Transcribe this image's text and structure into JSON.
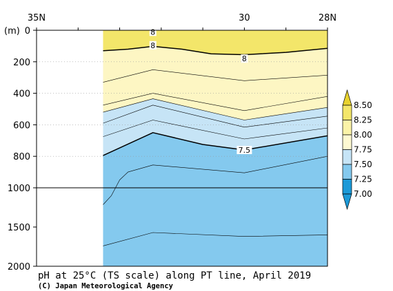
{
  "chart_data": {
    "type": "heatmap",
    "title": "pH at 25°C (TS scale) along PT line, April 2019",
    "ylabel": "(m)",
    "x_tick_labels": [
      {
        "label": "35N",
        "lat": 35
      },
      {
        "label": "30",
        "lat": 30
      },
      {
        "label": "28N",
        "lat": 28
      }
    ],
    "x_range_lat": [
      35,
      28
    ],
    "y_upper_range_m": [
      0,
      1000
    ],
    "y_lower_range_m": [
      1000,
      2000
    ],
    "y_ticks_upper": [
      0,
      200,
      400,
      600,
      800,
      1000
    ],
    "y_ticks_lower": [
      1500,
      2000
    ],
    "data_start_lat": 33.4,
    "contours": [
      {
        "level": 8.0,
        "label": "8",
        "emphasis": true,
        "points": [
          [
            33.4,
            130
          ],
          [
            32.8,
            120
          ],
          [
            32.2,
            102
          ],
          [
            31.5,
            120
          ],
          [
            30.8,
            150
          ],
          [
            30.0,
            155
          ],
          [
            29.0,
            140
          ],
          [
            28.0,
            115
          ]
        ]
      },
      {
        "level": 7.9,
        "emphasis": false,
        "points": [
          [
            33.4,
            330
          ],
          [
            32.2,
            250
          ],
          [
            30.0,
            320
          ],
          [
            28.0,
            285
          ]
        ]
      },
      {
        "level": 7.85,
        "emphasis": false,
        "points": [
          [
            33.4,
            475
          ],
          [
            32.2,
            400
          ],
          [
            30.0,
            510
          ],
          [
            28.0,
            420
          ]
        ]
      },
      {
        "level": 7.8,
        "emphasis": false,
        "points": [
          [
            33.4,
            520
          ],
          [
            32.2,
            435
          ],
          [
            30.0,
            570
          ],
          [
            28.0,
            490
          ]
        ]
      },
      {
        "level": 7.7,
        "emphasis": false,
        "points": [
          [
            33.4,
            590
          ],
          [
            32.2,
            475
          ],
          [
            30.0,
            615
          ],
          [
            28.0,
            545
          ]
        ]
      },
      {
        "level": 7.6,
        "emphasis": false,
        "points": [
          [
            33.4,
            675
          ],
          [
            32.2,
            570
          ],
          [
            30.0,
            690
          ],
          [
            28.0,
            620
          ]
        ]
      },
      {
        "level": 7.5,
        "label": "7.5",
        "emphasis": true,
        "points": [
          [
            33.4,
            795
          ],
          [
            32.2,
            650
          ],
          [
            31.0,
            725
          ],
          [
            30.0,
            760
          ],
          [
            28.0,
            670
          ]
        ]
      },
      {
        "level": 7.45,
        "emphasis": false,
        "points": [
          [
            33.4,
            1215
          ],
          [
            33.2,
            1100
          ],
          [
            33.0,
            950
          ],
          [
            32.8,
            900
          ],
          [
            32.2,
            855
          ],
          [
            30.0,
            905
          ],
          [
            28.0,
            800
          ]
        ]
      },
      {
        "level": 7.4,
        "emphasis": false,
        "points": [
          [
            33.4,
            1740
          ],
          [
            32.2,
            1570
          ],
          [
            30.0,
            1620
          ],
          [
            28.0,
            1600
          ]
        ]
      }
    ],
    "contour_labels": [
      {
        "text": "8",
        "lat": 32.2,
        "depth": 10
      },
      {
        "text": "8",
        "lat": 32.2,
        "depth": 95
      },
      {
        "text": "8",
        "lat": 30.0,
        "depth": 180
      },
      {
        "text": "7.5",
        "lat": 30.0,
        "depth": 760
      }
    ],
    "colorbar": {
      "labels": [
        "8.50",
        "8.25",
        "8.00",
        "7.75",
        "7.50",
        "7.25",
        "7.00"
      ],
      "colors": [
        "#e8d22e",
        "#f3e66a",
        "#fbf3a8",
        "#fef9d2",
        "#c6e4f6",
        "#84c9ee",
        "#1c9ad8"
      ],
      "boundaries": [
        8.5,
        8.25,
        8.0,
        7.75,
        7.5,
        7.25,
        7.0
      ]
    },
    "fill_bands": [
      {
        "range": "8.25-8.50",
        "color": "#f3e66a"
      },
      {
        "range": "8.00-8.25",
        "color": "#fdf6c3"
      },
      {
        "range": "7.75-8.00",
        "color": "#c6e4f6"
      },
      {
        "range": "7.50-7.75",
        "color": "#84c9ee"
      }
    ]
  },
  "footer": {
    "title": "pH at 25°C (TS scale) along PT line, April 2019",
    "credit": "(C) Japan Meteorological Agency"
  }
}
